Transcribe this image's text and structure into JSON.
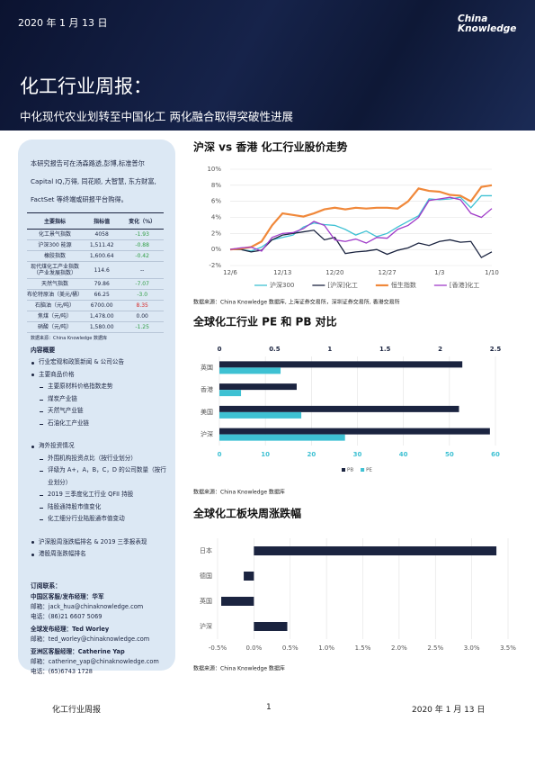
{
  "header": {
    "date": "2020 年 1 月 13 日",
    "logo": [
      "China",
      "Knowledge"
    ],
    "title": "化工行业周报：",
    "subtitle": "中化现代农业划转至中国化工 两化融合取得突破性进展"
  },
  "sidebar": {
    "intro": "本研究报告可在汤森路透,彭博,标准普尔 Capital IQ,万得, 同花顺, 大智慧, 东方财富, FactSet 等终端或研报平台购得。",
    "table": {
      "header": [
        "主要指标",
        "指标值",
        "变化（%）"
      ],
      "rows": [
        [
          "化工景气指数",
          "4058",
          "-1.93"
        ],
        [
          "沪深300 能源",
          "1,511.42",
          "-0.88"
        ],
        [
          "橡胶指数",
          "1,600.64",
          "-0.42"
        ],
        [
          "现代煤化工产业指数（产业发展指数）",
          "114.6",
          "--"
        ],
        [
          "天然气指数",
          "79.86",
          "-7.07"
        ],
        [
          "布伦特原油（美元/桶）",
          "66.25",
          "-3.0"
        ],
        [
          "石脑油（元/吨）",
          "6700.00",
          "8.35"
        ],
        [
          "焦煤（元/吨）",
          "1,478.00",
          "0.00"
        ],
        [
          "硝酸（元/吨）",
          "1,580.00",
          "-1.25"
        ]
      ],
      "note": "数据来源：China Knowledge 数据库"
    },
    "contents": {
      "title": "内容概要",
      "items": [
        {
          "text": "行业宏观和政策新闻 & 公司公告"
        },
        {
          "text": "主要商品价格",
          "sub": [
            "主要原材料价格指数走势",
            "煤炭产业链",
            "天然气产业链",
            "石油化工产业链"
          ]
        },
        {
          "text": "海外投资情况",
          "sub": [
            "外围机构投资点比（按行业划分）",
            "评级为 A+，A，B，C，D 的公司数量（按行业划分）",
            "2019 三季度化工行业 QFII 持股",
            "陆股通持股市值变化",
            "化工细分行业陆股通市值变动"
          ]
        },
        {
          "text": "沪深股周涨跌幅排名 & 2019 三季报表现"
        },
        {
          "text": "港股周涨跌幅排名"
        }
      ]
    },
    "contact": {
      "title": "订阅联系：",
      "groups": [
        {
          "heading": "中国区客服/发布经理：华军",
          "lines": [
            "邮箱：jack_hua@chinaknowledge.com",
            "电话：(86)21 6607 5069"
          ]
        },
        {
          "heading": "全球发布经理：Ted Worley",
          "lines": [
            "邮箱：ted_worley@chinaknowledge.com"
          ]
        },
        {
          "heading": "亚洲区客服经理：Catherine Yap",
          "lines": [
            "邮箱：catherine_yap@chinaknowledge.com",
            "电话：(65)6743 1728"
          ]
        }
      ]
    }
  },
  "chart_data": [
    {
      "type": "line",
      "title": "沪深 vs 香港 化工行业股价走势",
      "note": "数据来源：China Knowledge 数据库, 上海证券交易所，深圳证券交易所, 香港交易所",
      "categories": [
        "12/6",
        null,
        null,
        null,
        null,
        "12/13",
        null,
        null,
        null,
        null,
        "12/20",
        null,
        null,
        null,
        null,
        "12/27",
        null,
        null,
        null,
        null,
        "1/3",
        null,
        null,
        null,
        null,
        "1/10"
      ],
      "ylim": [
        -2,
        10
      ],
      "yticks": [
        {
          "value": -2,
          "label": "-2%"
        },
        {
          "value": 0,
          "label": "0%"
        },
        {
          "value": 2,
          "label": "2%"
        },
        {
          "value": 4,
          "label": "4%"
        },
        {
          "value": 6,
          "label": "6%"
        },
        {
          "value": 8,
          "label": "8%"
        },
        {
          "value": 10,
          "label": "10%"
        }
      ],
      "grid": true,
      "series": [
        {
          "name": "沪深300",
          "color": "#3ec1d3",
          "values": [
            0,
            0,
            -0.2,
            0.3,
            1.2,
            1.5,
            1.8,
            2.8,
            3.3,
            3.1,
            3.0,
            2.5,
            1.8,
            2.3,
            1.6,
            2.0,
            2.8,
            3.5,
            4.2,
            6.3,
            6.2,
            6.3,
            6.5,
            5.2,
            6.7,
            6.7
          ]
        },
        {
          "name": "[沪深]化工",
          "color": "#1b2440",
          "values": [
            0,
            0,
            -0.3,
            -0.1,
            1.2,
            1.8,
            2.0,
            2.2,
            2.4,
            1.2,
            1.5,
            -0.5,
            -0.3,
            -0.2,
            0.0,
            -0.6,
            -0.1,
            0.2,
            0.8,
            0.5,
            1.0,
            1.2,
            0.9,
            1.0,
            -1.0,
            -0.3
          ]
        },
        {
          "name": "恒生指数",
          "color": "#f0883a",
          "values": [
            0,
            0.1,
            0.3,
            1.0,
            3.0,
            4.5,
            4.3,
            4.1,
            4.5,
            5.0,
            5.2,
            5.0,
            5.2,
            5.1,
            5.2,
            5.2,
            5.1,
            6.0,
            7.6,
            7.3,
            7.2,
            6.8,
            6.7,
            6.0,
            7.8,
            8.0
          ]
        },
        {
          "name": "[香港]化工",
          "color": "#a03cc8",
          "values": [
            0,
            0.2,
            0.3,
            -0.2,
            1.5,
            2.0,
            2.1,
            2.6,
            3.5,
            3.0,
            1.2,
            1.0,
            1.3,
            0.8,
            1.5,
            1.4,
            2.5,
            3.0,
            4.0,
            6.1,
            6.3,
            6.5,
            6.2,
            4.5,
            4.0,
            5.1
          ]
        }
      ]
    },
    {
      "type": "hbar",
      "title": "全球化工行业 PE 和 PB 对比",
      "note": "数据来源：China Knowledge 数据库",
      "categories": [
        "英国",
        "香港",
        "美国",
        "沪深"
      ],
      "xlim": [
        0,
        60
      ],
      "xticks": [
        0,
        10,
        20,
        30,
        40,
        50,
        60
      ],
      "x2lim": [
        0,
        2.5
      ],
      "x2ticks": [
        0,
        0.5,
        1,
        1.5,
        2,
        2.5
      ],
      "grid": true,
      "series": [
        {
          "name": "PB",
          "color": "#1b2440",
          "axis": "x2",
          "values": [
            2.2,
            0.7,
            2.17,
            2.45
          ]
        },
        {
          "name": "PE",
          "color": "#3ec1d3",
          "values": [
            13.3,
            4.7,
            17.8,
            27.3
          ]
        }
      ]
    },
    {
      "type": "hbar",
      "title": "全球化工板块周涨跌幅",
      "note": "数据来源：China Knowledge 数据库",
      "categories": [
        "日本",
        "德国",
        "英国",
        "沪深"
      ],
      "xlim": [
        -0.5,
        3.5
      ],
      "xticks": [
        {
          "value": -0.5,
          "label": "-0.5%"
        },
        {
          "value": 0,
          "label": "0.0%"
        },
        {
          "value": 0.5,
          "label": "0.5%"
        },
        {
          "value": 1,
          "label": "1.0%"
        },
        {
          "value": 1.5,
          "label": "1.5%"
        },
        {
          "value": 2,
          "label": "2.0%"
        },
        {
          "value": 2.5,
          "label": "2.5%"
        },
        {
          "value": 3,
          "label": "3.0%"
        },
        {
          "value": 3.5,
          "label": "3.5%"
        }
      ],
      "grid": true,
      "series": [
        {
          "name": "周涨跌幅",
          "color": "#1b2440",
          "values": [
            3.34,
            -0.14,
            -0.45,
            0.46
          ]
        }
      ]
    }
  ],
  "footer": {
    "left": "化工行业周报",
    "page": "1",
    "date": "2020 年 1 月 13 日"
  }
}
